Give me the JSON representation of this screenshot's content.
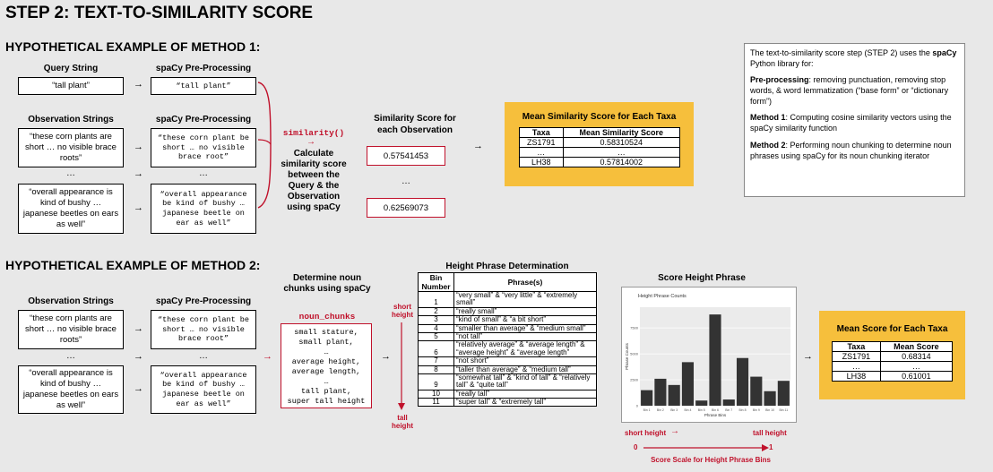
{
  "title": "STEP 2: TEXT-TO-SIMILARITY SCORE",
  "method1": {
    "heading": "HYPOTHETICAL EXAMPLE OF METHOD 1:",
    "query_label": "Query String",
    "query_value": "“tall plant”",
    "preproc_label": "spaCy Pre-Processing",
    "query_processed": "“tall plant”",
    "obs_label": "Observation Strings",
    "obs1": "“these corn plants are short … no visible brace roots”",
    "obs_ellipsis": "…",
    "obs2": "“overall appearance is kind of bushy … japanese beetles on ears as well”",
    "proc1": "“these corn plant be short … no visible brace root”",
    "proc2": "“overall appearance be kind of bushy … japanese beetle on ear as well”",
    "func": "similarity()",
    "func_desc": "Calculate similarity score between the Query & the Observation using spaCy",
    "score_label": "Similarity Score for each Observation",
    "score1": "0.57541453",
    "score2": "0.62569073",
    "mean_title": "Mean Similarity Score for Each Taxa",
    "mean_headers": [
      "Taxa",
      "Mean Similarity Score"
    ],
    "mean_rows": [
      [
        "ZS1791",
        "0.58310524"
      ],
      [
        "…",
        "…"
      ],
      [
        "LH38",
        "0.57814002"
      ]
    ]
  },
  "note": {
    "intro_pre": "The text-to-similarity score step (STEP 2) uses the ",
    "intro_bold": "spaCy",
    "intro_post": " Python library for:",
    "p1_bold": "Pre-processing",
    "p1": ": removing punctuation, removing stop words, & word lemmatization (“base form” or “dictionary form”)",
    "p2_bold": "Method 1",
    "p2": ": Computing cosine similarity vectors using the spaCy similarity function",
    "p3_bold": "Method 2",
    "p3": ": Performing noun chunking to determine noun phrases using spaCy for its noun chunking iterator"
  },
  "method2": {
    "heading": "HYPOTHETICAL EXAMPLE OF METHOD 2:",
    "obs_label": "Observation Strings",
    "preproc_label": "spaCy Pre-Processing",
    "obs1": "“these corn plants are short … no visible brace roots”",
    "obs2": "“overall appearance is kind of bushy … japanese beetles on ears as well”",
    "proc1": "“these corn plant be short … no visible brace root”",
    "proc2": "“overall appearance be kind of bushy … japanese beetle on ear as well”",
    "chunk_label": "Determine noun chunks using spaCy",
    "chunk_func": "noun_chunks",
    "chunks": [
      "small stature,",
      "small plant,",
      "…",
      "average height,",
      "average length,",
      "…",
      "tall plant,",
      "super tall height"
    ],
    "short_height": "short height",
    "tall_height": "tall height",
    "hpd_title": "Height Phrase Determination",
    "hpd_headers": [
      "Bin Number",
      "Phrase(s)"
    ],
    "hpd_rows": [
      [
        "1",
        "“very small” & “very little” & “extremely small”"
      ],
      [
        "2",
        "“really small”"
      ],
      [
        "3",
        "“kind of small” & “a bit short”"
      ],
      [
        "4",
        "“smaller than average” & “medium small”"
      ],
      [
        "5",
        "“not tall”"
      ],
      [
        "6",
        "“relatively average” & “average length” & “average height” & “average length”"
      ],
      [
        "7",
        "“not short”"
      ],
      [
        "8",
        "“taller than average” & “medium tall”"
      ],
      [
        "9",
        "“somewhat tall” & “kind of tall” & “relatively tall” & “quite tall”"
      ],
      [
        "10",
        "“really tall”"
      ],
      [
        "11",
        "“super tall” & “extremely tall”"
      ]
    ],
    "score_title": "Score Height Phrase",
    "scale_short": "short height",
    "scale_tall": "tall height",
    "scale_zero": "0",
    "scale_one": "1",
    "scale_caption": "Score Scale for Height Phrase Bins",
    "mean_title": "Mean Score for Each Taxa",
    "mean_headers": [
      "Taxa",
      "Mean Score"
    ],
    "mean_rows": [
      [
        "ZS1791",
        "0.68314"
      ],
      [
        "…",
        "…"
      ],
      [
        "LH38",
        "0.61001"
      ]
    ]
  },
  "chart_data": {
    "type": "bar",
    "title": "Height Phrase Counts",
    "xlabel": "Phrase Bins",
    "ylabel": "Phrase Counts",
    "categories": [
      "Bin 1",
      "Bin 2",
      "Bin 3",
      "Bin 4",
      "Bin 5",
      "Bin 6",
      "Bin 7",
      "Bin 8",
      "Bin 9",
      "Bin 10",
      "Bin 11"
    ],
    "values": [
      1500,
      2600,
      2000,
      4200,
      500,
      8800,
      600,
      4600,
      2800,
      1400,
      2400
    ],
    "yticks": [
      "0",
      "2500",
      "5000",
      "7500"
    ],
    "ylim": [
      0,
      9500
    ],
    "grid": true
  }
}
